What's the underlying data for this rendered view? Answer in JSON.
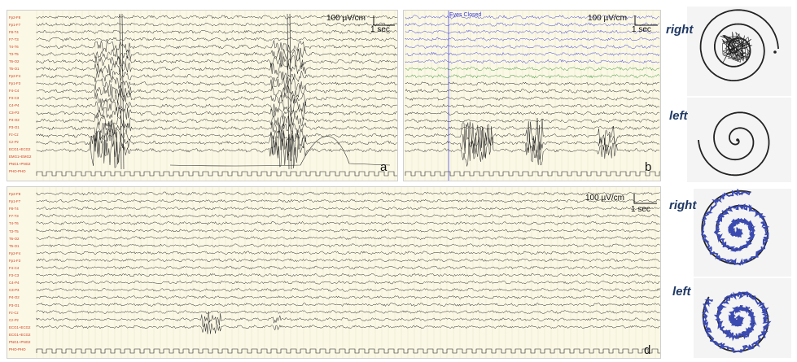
{
  "panels": {
    "a": {
      "letter": "a",
      "scale_uv": "100 µV/cm",
      "scale_sec": "1 sec",
      "channels": [
        "Fp2-F8",
        "Fp1-F7",
        "F8-T4",
        "F7-T3",
        "T4-T6",
        "T3-T5",
        "T6-O2",
        "T5-O1",
        "Fp2-F4",
        "Fp1-F3",
        "F4-C4",
        "F3-C3",
        "C4-P4",
        "C3-P3",
        "P4-O2",
        "P3-O1",
        "Fz-Cz",
        "Cz-Pz",
        "ECG1+ECG2",
        "EMG1+EMG2",
        "PNG1+PNG2",
        "PHO-PHO"
      ]
    },
    "b": {
      "letter": "b",
      "scale_uv": "100 µV/cm",
      "scale_sec": "1 sec",
      "marker": "Eyes Closed"
    },
    "d": {
      "letter": "d",
      "scale_uv": "100 µV/cm",
      "scale_sec": "1 sec",
      "channels": [
        "Fp2-F8",
        "Fp1-F7",
        "F8-T4",
        "F7-T3",
        "T4-T6",
        "T3-T5",
        "T6-O2",
        "T5-O1",
        "Fp2-F4",
        "Fp1-F3",
        "F4-C4",
        "F3-C3",
        "C4-P4",
        "C3-P3",
        "P4-O2",
        "P3-O1",
        "Fz-Cz",
        "Cz-Pz",
        "ECG1+ECG2",
        "ECG1+ECG2",
        "PNG1+PNG2",
        "PHO-PHO"
      ]
    }
  },
  "drawings": {
    "top_right_label": "right",
    "top_left_label": "left",
    "bottom_right_label": "right",
    "bottom_left_label": "left"
  },
  "colors": {
    "trace": "#222222",
    "trace_blue": "#3a3ad8",
    "trace_green": "#2f8f2f",
    "grid_bg": "#fbf8e6",
    "channel_label": "#d23a1a",
    "side_label": "#1f3864"
  }
}
